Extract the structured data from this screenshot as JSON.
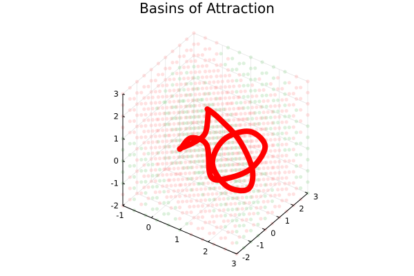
{
  "chart_data": {
    "type": "scatter",
    "title": "Basins of Attraction",
    "xlabel": "",
    "ylabel": "",
    "zlabel": "",
    "projection": "3d",
    "grid": true,
    "legend": "none",
    "xlim": [
      -1,
      3
    ],
    "ylim": [
      -2,
      3
    ],
    "zlim": [
      -2,
      3
    ],
    "x_ticks": [
      "-1",
      "0",
      "1",
      "2",
      "3"
    ],
    "y_ticks": [
      "-2",
      "-1",
      "0",
      "1",
      "2",
      "3"
    ],
    "z_ticks": [
      "-2",
      "-1",
      "0",
      "1",
      "2",
      "3"
    ],
    "basin_grid": {
      "x_range": [
        -1,
        3
      ],
      "y_range": [
        -2,
        3
      ],
      "z_range": [
        -2,
        3
      ],
      "colors": [
        "#ff8a8a",
        "#8fd08f"
      ]
    },
    "series": [
      {
        "type": "line3d",
        "color": "#ff0000",
        "x": [
          0.2,
          0.9,
          1.4,
          1.1,
          0.7,
          0.8,
          1.3,
          1.9,
          2.1,
          1.7,
          1.3,
          1.4,
          1.9,
          2.3,
          2.1,
          1.6,
          1.2,
          0.9,
          0.4,
          0.2
        ],
        "y": [
          -0.3,
          -0.8,
          -1.0,
          -0.2,
          0.6,
          1.3,
          1.6,
          1.3,
          0.6,
          -0.1,
          -0.3,
          0.3,
          1.1,
          1.4,
          0.9,
          0.3,
          -0.2,
          0.1,
          0.0,
          -0.3
        ],
        "z": [
          0.3,
          1.2,
          2.0,
          2.3,
          1.8,
          1.0,
          0.2,
          -0.6,
          -1.0,
          -0.7,
          0.2,
          1.0,
          1.2,
          0.6,
          -0.2,
          -0.6,
          -0.5,
          0.6,
          0.7,
          0.3
        ]
      }
    ]
  }
}
